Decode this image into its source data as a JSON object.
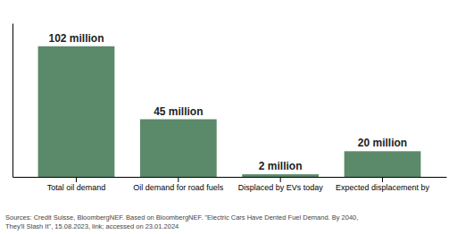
{
  "chart_data": {
    "type": "bar",
    "categories": [
      "Total oil demand",
      "Oil demand for road fuels",
      "Displaced by EVs today",
      "Expected displacement by"
    ],
    "values": [
      102,
      45,
      2,
      20
    ],
    "value_labels": [
      "102 million",
      "45 million",
      "2 million",
      "20 million"
    ],
    "data_labels": true,
    "color": "#5a8a6a",
    "ylim": [
      0,
      120
    ],
    "tick_labels": "x",
    "grid": false,
    "annotations": [
      "Sources: Credit Suisse, BloombergNEF. Based on BloombergNEF. \"Electric Cars Have Dented Fuel Demand. By 2040,",
      "They'll Slash It\", 15.08.2023, link; accessed on 23.01.2024"
    ]
  }
}
